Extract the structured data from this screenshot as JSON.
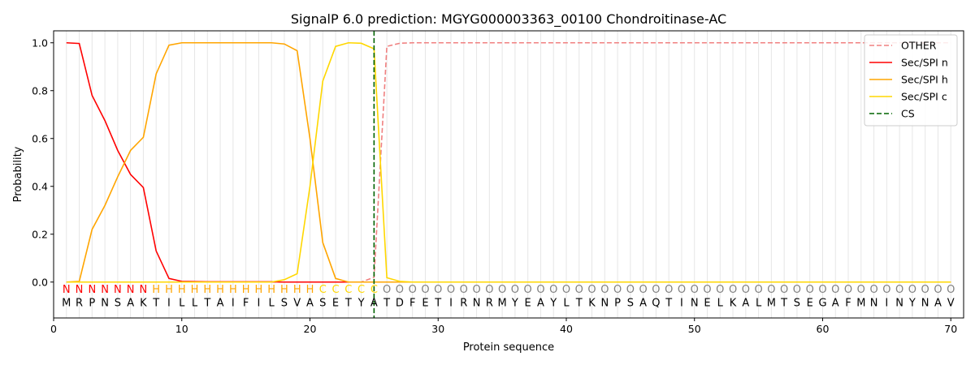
{
  "chart_data": {
    "type": "line",
    "title": "SignalP 6.0 prediction: MGYG000003363_00100 Chondroitinase-AC",
    "xlabel": "Protein sequence",
    "ylabel": "Probability",
    "xlim": [
      0,
      71
    ],
    "ylim": [
      -0.15,
      1.05
    ],
    "xticks": [
      0,
      10,
      20,
      30,
      40,
      50,
      60,
      70
    ],
    "yticks": [
      0.0,
      0.2,
      0.4,
      0.6,
      0.8,
      1.0
    ],
    "ytick_labels": [
      "0.0",
      "0.2",
      "0.4",
      "0.6",
      "0.8",
      "1.0"
    ],
    "grid": "vertical lines at each residue",
    "legend_position": "top-right",
    "sequence": [
      "M",
      "R",
      "P",
      "N",
      "S",
      "A",
      "K",
      "T",
      "I",
      "L",
      "L",
      "T",
      "A",
      "I",
      "F",
      "I",
      "L",
      "S",
      "V",
      "A",
      "S",
      "E",
      "T",
      "Y",
      "A",
      "T",
      "D",
      "F",
      "E",
      "T",
      "I",
      "R",
      "N",
      "R",
      "M",
      "Y",
      "E",
      "A",
      "Y",
      "L",
      "T",
      "K",
      "N",
      "P",
      "S",
      "A",
      "Q",
      "T",
      "I",
      "N",
      "E",
      "L",
      "K",
      "A",
      "L",
      "M",
      "T",
      "S",
      "E",
      "G",
      "A",
      "F",
      "M",
      "N",
      "I",
      "N",
      "Y",
      "N",
      "A",
      "V"
    ],
    "labels": [
      "N",
      "N",
      "N",
      "N",
      "N",
      "N",
      "N",
      "H",
      "H",
      "H",
      "H",
      "H",
      "H",
      "H",
      "H",
      "H",
      "H",
      "H",
      "H",
      "H",
      "C",
      "C",
      "C",
      "C",
      "C",
      "O",
      "O",
      "O",
      "O",
      "O",
      "O",
      "O",
      "O",
      "O",
      "O",
      "O",
      "O",
      "O",
      "O",
      "O",
      "O",
      "O",
      "O",
      "O",
      "O",
      "O",
      "O",
      "O",
      "O",
      "O",
      "O",
      "O",
      "O",
      "O",
      "O",
      "O",
      "O",
      "O",
      "O",
      "O",
      "O",
      "O",
      "O",
      "O",
      "O",
      "O",
      "O",
      "O",
      "O",
      "O"
    ],
    "label_colors": {
      "N": "#ff0000",
      "H": "#ffa500",
      "C": "#ffd700",
      "O": "#808080"
    },
    "cleavage_site": 25,
    "series": [
      {
        "name": "OTHER",
        "color": "#f08080",
        "dash": true,
        "values": [
          0,
          0,
          0,
          0,
          0,
          0,
          0,
          0,
          0,
          0,
          0,
          0,
          0,
          0,
          0,
          0,
          0,
          0,
          0,
          0,
          0,
          0,
          0,
          0,
          0.02,
          0.985,
          0.998,
          1,
          1,
          1,
          1,
          1,
          1,
          1,
          1,
          1,
          1,
          1,
          1,
          1,
          1,
          1,
          1,
          1,
          1,
          1,
          1,
          1,
          1,
          1,
          1,
          1,
          1,
          1,
          1,
          1,
          1,
          1,
          1,
          1,
          1,
          1,
          1,
          1,
          1,
          1,
          1,
          1,
          1,
          1
        ]
      },
      {
        "name": "Sec/SPI n",
        "color": "#ff0000",
        "dash": false,
        "values": [
          1.0,
          0.997,
          0.78,
          0.675,
          0.55,
          0.45,
          0.395,
          0.13,
          0.015,
          0.003,
          0.002,
          0.001,
          0.001,
          0.001,
          0.001,
          0.001,
          0.001,
          0,
          0,
          0,
          0,
          0,
          0,
          0,
          0,
          0,
          0,
          0,
          0,
          0,
          0,
          0,
          0,
          0,
          0,
          0,
          0,
          0,
          0,
          0,
          0,
          0,
          0,
          0,
          0,
          0,
          0,
          0,
          0,
          0,
          0,
          0,
          0,
          0,
          0,
          0,
          0,
          0,
          0,
          0,
          0,
          0,
          0,
          0,
          0,
          0,
          0,
          0,
          0,
          0
        ]
      },
      {
        "name": "Sec/SPI h",
        "color": "#ffa500",
        "dash": false,
        "values": [
          0,
          0.003,
          0.22,
          0.32,
          0.44,
          0.55,
          0.605,
          0.87,
          0.99,
          1.0,
          1.0,
          1.0,
          1.0,
          1.0,
          1.0,
          1.0,
          1.0,
          0.995,
          0.967,
          0.6,
          0.165,
          0.015,
          0,
          0,
          0,
          0,
          0,
          0,
          0,
          0,
          0,
          0,
          0,
          0,
          0,
          0,
          0,
          0,
          0,
          0,
          0,
          0,
          0,
          0,
          0,
          0,
          0,
          0,
          0,
          0,
          0,
          0,
          0,
          0,
          0,
          0,
          0,
          0,
          0,
          0,
          0,
          0,
          0,
          0,
          0,
          0,
          0,
          0,
          0,
          0
        ]
      },
      {
        "name": "Sec/SPI c",
        "color": "#ffd700",
        "dash": false,
        "values": [
          0,
          0,
          0,
          0,
          0,
          0,
          0,
          0,
          0,
          0,
          0,
          0,
          0,
          0,
          0,
          0,
          0,
          0.01,
          0.035,
          0.4,
          0.84,
          0.985,
          1.0,
          0.998,
          0.975,
          0.018,
          0.003,
          0,
          0,
          0,
          0,
          0,
          0,
          0,
          0,
          0,
          0,
          0,
          0,
          0,
          0,
          0,
          0,
          0,
          0,
          0,
          0,
          0,
          0,
          0,
          0,
          0,
          0,
          0,
          0,
          0,
          0,
          0,
          0,
          0,
          0,
          0,
          0,
          0,
          0,
          0,
          0,
          0,
          0,
          0
        ]
      }
    ],
    "legend": [
      {
        "label": "OTHER",
        "color": "#f08080",
        "dash": true
      },
      {
        "label": "Sec/SPI n",
        "color": "#ff0000",
        "dash": false
      },
      {
        "label": "Sec/SPI h",
        "color": "#ffa500",
        "dash": false
      },
      {
        "label": "Sec/SPI c",
        "color": "#ffd700",
        "dash": false
      },
      {
        "label": "CS",
        "color": "#006400",
        "dash": true
      }
    ]
  }
}
